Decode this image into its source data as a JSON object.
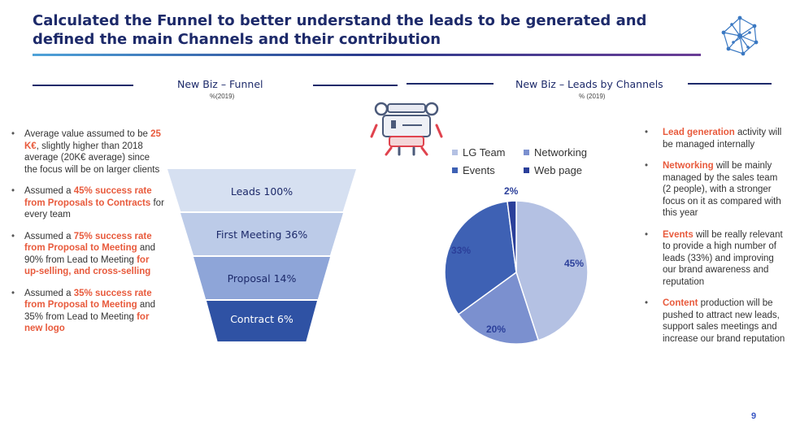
{
  "header": {
    "title": "Calculated the Funnel to better understand the leads to be generated and defined the main Channels and their contribution"
  },
  "funnel_section": {
    "title": "New Biz – Funnel",
    "subtitle": "%(2019)"
  },
  "channels_section": {
    "title": "New Biz – Leads by Channels",
    "subtitle": "% (2019)"
  },
  "left_bullets": [
    {
      "pre": "Average value assumed to be ",
      "hl": "25 K€",
      "post": ", slightly higher than 2018 average (20K€ average) since the focus will be on larger clients"
    },
    {
      "pre": "Assumed a ",
      "hl": "45% success rate from Proposals to Contracts",
      "post": " for every team"
    },
    {
      "pre": "Assumed a ",
      "hl": "75% success rate from Proposal to Meeting",
      "post": " and 90% from Lead to Meeting ",
      "hl2": "for up-selling, and cross-selling",
      "post2": ""
    },
    {
      "pre": "Assumed a ",
      "hl": "35% success rate from Proposal to Meeting",
      "post": " and 35% from Lead to Meeting ",
      "hl2": "for new logo",
      "post2": ""
    }
  ],
  "funnel_stages": [
    {
      "label": "Leads 100%",
      "color": "#d6e0f1",
      "text_color": "#1d2a6a"
    },
    {
      "label": "First Meeting 36%",
      "color": "#bccbe8",
      "text_color": "#1d2a6a"
    },
    {
      "label": "Proposal 14%",
      "color": "#8ea5d8",
      "text_color": "#1d2a6a"
    },
    {
      "label": "Contract 6%",
      "color": "#2f52a4",
      "text_color": "#ffffff"
    }
  ],
  "chart_data": {
    "type": "pie",
    "title": "New Biz – Leads by Channels",
    "categories": [
      "LG Team",
      "Networking",
      "Events",
      "Web page"
    ],
    "values": [
      45,
      20,
      33,
      2
    ],
    "value_labels": [
      "45%",
      "20%",
      "33%",
      "2%"
    ],
    "colors": [
      "#b4c1e3",
      "#7b90cf",
      "#3e61b4",
      "#2b3f9a"
    ],
    "legend": [
      "LG Team",
      "Networking",
      "Events",
      "Web page"
    ]
  },
  "right_bullets": [
    {
      "hl": "Lead generation",
      "post": " activity will be managed internally"
    },
    {
      "hl": "Networking",
      "post": " will be mainly managed by the sales team (2 people), with a stronger focus on it as compared with this year"
    },
    {
      "hl": "Events",
      "post": " will be really relevant to provide a high number of leads (33%) and improving our brand awareness and reputation"
    },
    {
      "hl": "Content",
      "post": " production will be pushed to attract new leads, support sales meetings and increase our brand reputation"
    }
  ],
  "footer": {
    "page_number": "9"
  }
}
